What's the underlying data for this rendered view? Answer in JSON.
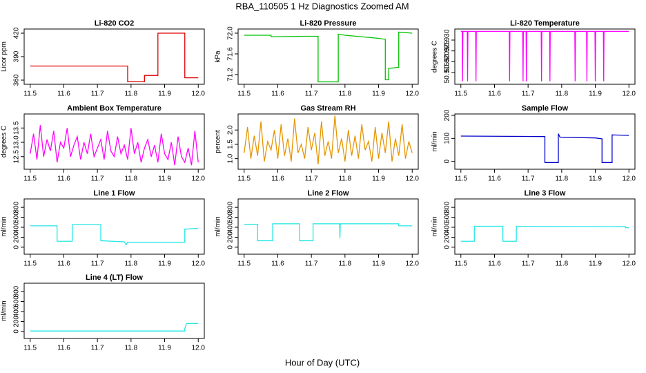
{
  "title": "RBA_110505  1 Hz Diagnostics Zoomed AM",
  "xlabel": "Hour of Day (UTC)",
  "chart_data": [
    {
      "type": "line",
      "title": "Li-820 CO2",
      "ylabel": "Licor ppm",
      "color": "#e00000",
      "x": [
        11.5,
        11.79,
        11.79,
        11.84,
        11.84,
        11.88,
        11.88,
        11.96,
        11.96,
        12.0
      ],
      "values": [
        378,
        378,
        358,
        358,
        366,
        366,
        420,
        420,
        363,
        363
      ],
      "xlim": [
        11.482,
        12.018
      ],
      "xticks": [
        11.5,
        11.6,
        11.7,
        11.8,
        11.9,
        {
          "value": 12,
          "label": "12.0"
        }
      ],
      "ylim": [
        354.7,
        425.3
      ],
      "yticks": [
        360,
        390,
        420
      ]
    },
    {
      "type": "line",
      "title": "Li-820 Pressure",
      "ylabel": "kPa",
      "color": "#00c000",
      "x": [
        11.5,
        11.58,
        11.58,
        11.68,
        11.72,
        11.72,
        11.78,
        11.78,
        11.8,
        11.9,
        11.92,
        11.92,
        11.93,
        11.93,
        11.96,
        11.96,
        12.0
      ],
      "values": [
        71.96,
        71.96,
        71.93,
        71.94,
        71.94,
        71.06,
        71.06,
        71.98,
        71.96,
        71.9,
        71.88,
        71.1,
        71.1,
        71.32,
        71.34,
        72.02,
        72.0
      ],
      "xlim": [
        11.482,
        12.018
      ],
      "xticks": [
        11.5,
        11.6,
        11.7,
        11.8,
        11.9,
        {
          "value": 12,
          "label": "12.0"
        }
      ],
      "ylim": [
        71.013,
        72.08
      ],
      "yticks": [
        71.2,
        71.6,
        {
          "value": 72,
          "label": "72.0"
        }
      ]
    },
    {
      "type": "line",
      "title": "Li-820 Temperature",
      "ylabel": "degrees C",
      "color": "#ff00ff",
      "x": [
        11.5,
        11.504,
        11.505,
        11.506,
        11.519,
        11.52,
        11.521,
        11.544,
        11.545,
        11.546,
        11.644,
        11.645,
        11.646,
        11.684,
        11.685,
        11.686,
        11.694,
        11.695,
        11.696,
        11.739,
        11.74,
        11.741,
        11.764,
        11.765,
        11.766,
        11.839,
        11.84,
        11.841,
        11.874,
        11.875,
        11.876,
        11.899,
        11.9,
        11.901,
        11.924,
        11.925,
        11.926,
        12.0
      ],
      "values": [
        50.934,
        50.934,
        50.911,
        50.934,
        50.934,
        50.911,
        50.934,
        50.934,
        50.911,
        50.934,
        50.934,
        50.911,
        50.934,
        50.934,
        50.911,
        50.934,
        50.934,
        50.911,
        50.934,
        50.934,
        50.911,
        50.934,
        50.934,
        50.911,
        50.934,
        50.934,
        50.911,
        50.934,
        50.934,
        50.911,
        50.934,
        50.934,
        50.911,
        50.934,
        50.934,
        50.911,
        50.934,
        50.934
      ],
      "xlim": [
        11.482,
        12.018
      ],
      "xticks": [
        11.5,
        11.6,
        11.7,
        11.8,
        11.9,
        {
          "value": 12,
          "label": "12.0"
        }
      ],
      "ylim": [
        50.9096,
        50.9351
      ],
      "yticks": [
        50.915,
        {
          "value": 50.92,
          "label": "50.920"
        },
        50.925,
        {
          "value": 50.93,
          "label": "50.930"
        }
      ]
    },
    {
      "type": "line",
      "title": "Ambient Box Temperature",
      "ylabel": "degrees C",
      "color": "#ff00ff",
      "x": [
        11.5,
        11.51,
        11.52,
        11.53,
        11.54,
        11.55,
        11.56,
        11.57,
        11.58,
        11.59,
        11.6,
        11.61,
        11.62,
        11.63,
        11.64,
        11.65,
        11.66,
        11.67,
        11.68,
        11.69,
        11.7,
        11.71,
        11.72,
        11.73,
        11.74,
        11.75,
        11.76,
        11.77,
        11.78,
        11.79,
        11.8,
        11.81,
        11.82,
        11.83,
        11.84,
        11.85,
        11.86,
        11.87,
        11.88,
        11.89,
        11.9,
        11.91,
        11.92,
        11.93,
        11.94,
        11.95,
        11.96,
        11.97,
        11.98,
        11.99,
        12.0
      ],
      "values": [
        12.6,
        13.3,
        12.4,
        13.6,
        12.5,
        13.1,
        12.7,
        13.4,
        12.3,
        13.0,
        12.8,
        13.5,
        12.5,
        12.9,
        13.2,
        12.4,
        13.0,
        12.6,
        13.3,
        12.5,
        12.8,
        13.1,
        12.4,
        13.4,
        12.7,
        12.5,
        13.2,
        12.6,
        12.9,
        12.4,
        13.5,
        12.6,
        13.0,
        12.3,
        12.8,
        13.1,
        12.5,
        12.9,
        12.3,
        13.3,
        12.6,
        12.4,
        13.0,
        12.2,
        13.2,
        12.5,
        12.3,
        12.8,
        12.2,
        13.4,
        12.3
      ],
      "xlim": [
        11.482,
        12.018
      ],
      "xticks": [
        11.5,
        11.6,
        11.7,
        11.8,
        11.9,
        {
          "value": 12,
          "label": "12.0"
        }
      ],
      "ylim": [
        12.06,
        13.99
      ],
      "yticks": [
        12.5,
        {
          "value": 13,
          "label": "13.0"
        },
        13.5
      ]
    },
    {
      "type": "line",
      "title": "Gas Stream RH",
      "ylabel": "percent",
      "color": "#e69500",
      "x": [
        11.5,
        11.51,
        11.52,
        11.53,
        11.54,
        11.55,
        11.56,
        11.57,
        11.58,
        11.59,
        11.6,
        11.61,
        11.62,
        11.63,
        11.64,
        11.65,
        11.66,
        11.67,
        11.68,
        11.69,
        11.7,
        11.71,
        11.72,
        11.73,
        11.74,
        11.75,
        11.76,
        11.77,
        11.78,
        11.79,
        11.8,
        11.81,
        11.82,
        11.83,
        11.84,
        11.85,
        11.86,
        11.87,
        11.88,
        11.89,
        11.9,
        11.91,
        11.92,
        11.93,
        11.94,
        11.95,
        11.96,
        11.97,
        11.98,
        11.99,
        12.0
      ],
      "values": [
        1.2,
        2.1,
        1.0,
        1.8,
        1.1,
        2.3,
        0.9,
        1.6,
        1.3,
        2.0,
        1.0,
        2.2,
        1.1,
        1.7,
        0.9,
        2.4,
        1.2,
        1.5,
        1.0,
        2.1,
        1.3,
        1.9,
        0.8,
        2.3,
        1.1,
        1.6,
        1.0,
        2.5,
        1.2,
        1.7,
        0.9,
        2.0,
        1.1,
        1.8,
        1.0,
        2.2,
        1.3,
        1.6,
        0.9,
        2.1,
        1.0,
        1.9,
        1.2,
        2.3,
        0.9,
        1.7,
        1.1,
        2.2,
        1.0,
        1.6,
        1.2
      ],
      "xlim": [
        11.482,
        12.018
      ],
      "xticks": [
        11.5,
        11.6,
        11.7,
        11.8,
        11.9,
        {
          "value": 12,
          "label": "12.0"
        }
      ],
      "ylim": [
        0.63,
        2.56
      ],
      "yticks": [
        {
          "value": 1,
          "label": "1.0"
        },
        1.5,
        {
          "value": 2,
          "label": "2.0"
        }
      ]
    },
    {
      "type": "line",
      "title": "Sample Flow",
      "ylabel": "ml/min",
      "color": "#0000cc",
      "x": [
        11.5,
        11.75,
        11.75,
        11.79,
        11.79,
        11.795,
        11.9,
        11.92,
        11.92,
        11.95,
        11.95,
        12.0
      ],
      "values": [
        110,
        108,
        -5,
        -5,
        120,
        105,
        102,
        98,
        -5,
        -5,
        115,
        113
      ],
      "xlim": [
        11.482,
        12.018
      ],
      "xticks": [
        11.5,
        11.6,
        11.7,
        11.8,
        11.9,
        {
          "value": 12,
          "label": "12.0"
        }
      ],
      "ylim": [
        -34,
        206
      ],
      "yticks": [
        0,
        100,
        200
      ]
    },
    {
      "type": "line",
      "title": "Line 1 Flow",
      "ylabel": "ml/min",
      "color": "#22e6e6",
      "x": [
        11.5,
        11.58,
        11.58,
        11.625,
        11.625,
        11.71,
        11.71,
        11.78,
        11.785,
        11.79,
        11.96,
        11.96,
        12.0
      ],
      "values": [
        430,
        430,
        120,
        120,
        450,
        450,
        130,
        110,
        50,
        100,
        100,
        360,
        380
      ],
      "xlim": [
        11.482,
        12.018
      ],
      "xticks": [
        11.5,
        11.6,
        11.7,
        11.8,
        11.9,
        {
          "value": 12,
          "label": "12.0"
        }
      ],
      "ylim": [
        -140,
        968
      ],
      "yticks": [
        0,
        200,
        400,
        600,
        800
      ]
    },
    {
      "type": "line",
      "title": "Line 2 Flow",
      "ylabel": "ml/min",
      "color": "#22e6e6",
      "x": [
        11.5,
        11.54,
        11.54,
        11.585,
        11.585,
        11.665,
        11.665,
        11.705,
        11.705,
        11.784,
        11.785,
        11.786,
        11.96,
        11.96,
        12.0
      ],
      "values": [
        460,
        460,
        130,
        130,
        470,
        470,
        130,
        130,
        470,
        470,
        180,
        470,
        470,
        430,
        430
      ],
      "xlim": [
        11.482,
        12.018
      ],
      "xticks": [
        11.5,
        11.6,
        11.7,
        11.8,
        11.9,
        {
          "value": 12,
          "label": "12.0"
        }
      ],
      "ylim": [
        -140,
        968
      ],
      "yticks": [
        0,
        200,
        400,
        600,
        800
      ]
    },
    {
      "type": "line",
      "title": "Line 3 Flow",
      "ylabel": "ml/min",
      "color": "#22e6e6",
      "x": [
        11.5,
        11.54,
        11.54,
        11.625,
        11.625,
        11.665,
        11.665,
        11.99,
        11.99,
        12.0
      ],
      "values": [
        120,
        120,
        420,
        420,
        120,
        120,
        420,
        410,
        390,
        390
      ],
      "xlim": [
        11.482,
        12.018
      ],
      "xticks": [
        11.5,
        11.6,
        11.7,
        11.8,
        11.9,
        {
          "value": 12,
          "label": "12.0"
        }
      ],
      "ylim": [
        -140,
        968
      ],
      "yticks": [
        0,
        200,
        400,
        600,
        800
      ]
    },
    {
      "type": "line",
      "title": "Line 4 (LT) Flow",
      "ylabel": "ml/min",
      "color": "#22e6e6",
      "x": [
        11.5,
        11.96,
        11.96,
        11.965,
        12.0
      ],
      "values": [
        10,
        10,
        60,
        160,
        160
      ],
      "xlim": [
        11.482,
        12.018
      ],
      "xticks": [
        11.5,
        11.6,
        11.7,
        11.8,
        11.9,
        {
          "value": 12,
          "label": "12.0"
        }
      ],
      "ylim": [
        -140,
        968
      ],
      "yticks": [
        0,
        200,
        400,
        600,
        800
      ]
    }
  ]
}
